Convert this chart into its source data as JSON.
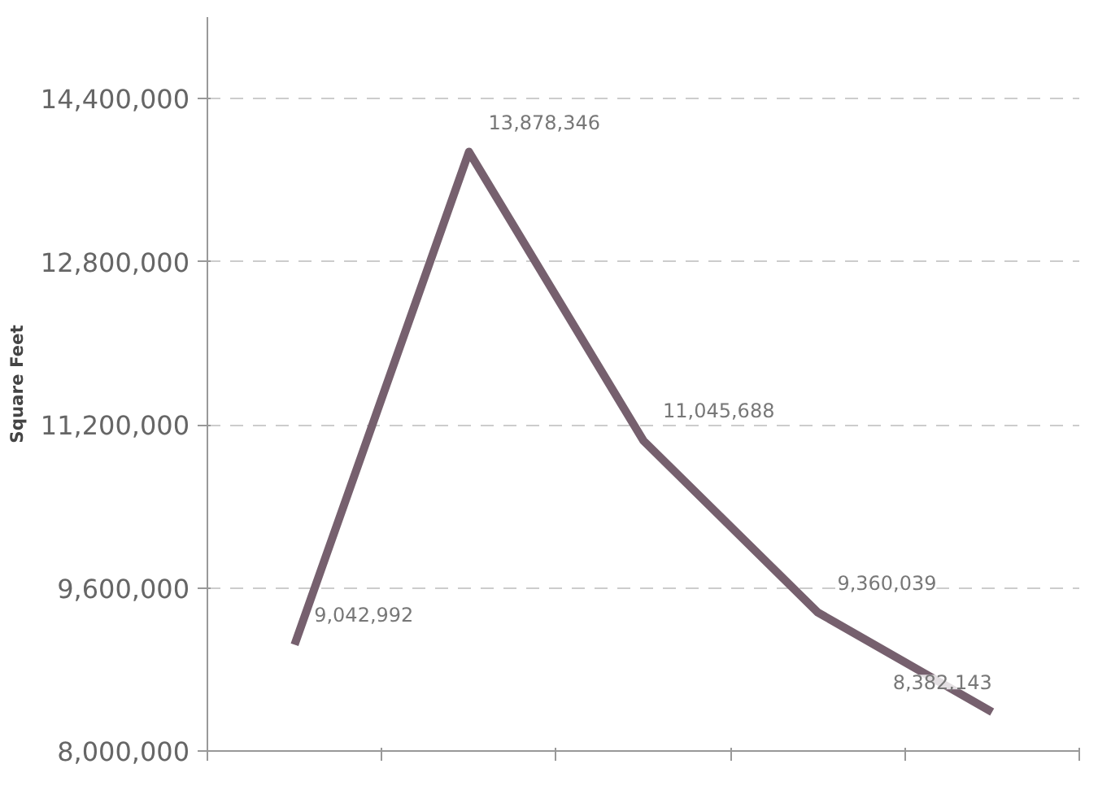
{
  "chart_data": {
    "type": "line",
    "ylabel": "Square Feet",
    "categories": [
      null,
      null,
      null,
      null,
      null
    ],
    "series": [
      {
        "color": "#76606e",
        "values": [
          9042992,
          13878346,
          11045688,
          9360039,
          8382143
        ],
        "value_labels": [
          "9,042,992",
          "13,878,346",
          "11,045,688",
          "9,360,039",
          "8,382,143"
        ]
      }
    ],
    "ylim": [
      8000000,
      15200000
    ],
    "yticks": [
      {
        "value": 8000000,
        "label": "8,000,000"
      },
      {
        "value": 9600000,
        "label": "9,600,000"
      },
      {
        "value": 11200000,
        "label": "11,200,000"
      },
      {
        "value": 12800000,
        "label": "12,800,000"
      },
      {
        "value": 14400000,
        "label": "14,400,000"
      }
    ],
    "grid": "y",
    "tick_labels": "y",
    "marker": "none",
    "line_style": "solid"
  }
}
